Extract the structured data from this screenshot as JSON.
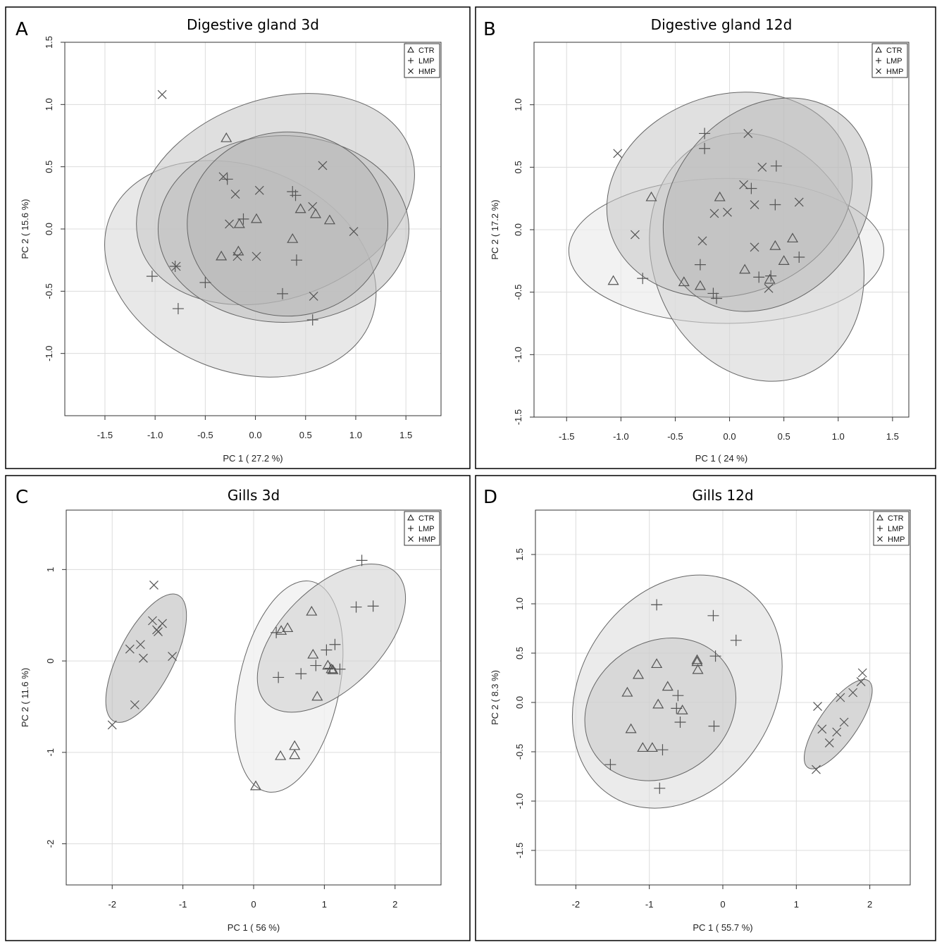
{
  "chart_data": [
    {
      "panel": "A",
      "type": "scatter",
      "title": "Digestive gland 3d",
      "xlabel": "PC 1 ( 27.2 %)",
      "ylabel": "PC 2 ( 15.6 %)",
      "xlim": [
        -1.9,
        1.85
      ],
      "ylim": [
        -1.5,
        1.5
      ],
      "xticks": [
        -1.5,
        -1.0,
        -0.5,
        0.0,
        0.5,
        1.0,
        1.5
      ],
      "xtick_labels": [
        "-1.5",
        "-1.0",
        "-0.5",
        "0.0",
        "0.5",
        "1.0",
        "1.5"
      ],
      "yticks": [
        -1.0,
        -0.5,
        0.0,
        0.5,
        1.0,
        1.5
      ],
      "ytick_labels": [
        "-1.0",
        "-0.5",
        "0.0",
        "0.5",
        "1.0",
        "1.5"
      ],
      "grid": true,
      "legend": {
        "position": "top-right",
        "entries": [
          {
            "label": "CTR",
            "marker": "triangle"
          },
          {
            "label": "LMP",
            "marker": "plus"
          },
          {
            "label": "HMP",
            "marker": "cross"
          }
        ]
      },
      "ellipses": [
        {
          "cx": -0.15,
          "cy": -0.32,
          "rx": 1.4,
          "ry": 0.82,
          "angle": 22,
          "fill": "#d9d9d9",
          "opacity": 0.6
        },
        {
          "cx": 0.2,
          "cy": 0.24,
          "rx": 1.43,
          "ry": 0.8,
          "angle": -20,
          "fill": "#c9c9c9",
          "opacity": 0.6
        },
        {
          "cx": 0.28,
          "cy": 0.0,
          "rx": 1.25,
          "ry": 0.75,
          "angle": 0,
          "fill": "#bdbdbd",
          "opacity": 0.55
        },
        {
          "cx": 0.32,
          "cy": 0.04,
          "rx": 1.0,
          "ry": 0.74,
          "angle": 0,
          "fill": "#b3b3b3",
          "opacity": 0.5
        }
      ],
      "series": [
        {
          "name": "CTR",
          "marker": "triangle",
          "x": [
            -0.29,
            -0.16,
            0.01,
            0.45,
            0.6,
            0.74,
            0.37,
            -0.34,
            -0.17
          ],
          "y": [
            0.73,
            0.04,
            0.08,
            0.16,
            0.12,
            0.07,
            -0.08,
            -0.22,
            -0.18
          ]
        },
        {
          "name": "LMP",
          "marker": "plus",
          "x": [
            -0.28,
            -0.12,
            0.37,
            0.4,
            0.41,
            0.27,
            -1.03,
            -0.8,
            -0.5,
            -0.77,
            0.57
          ],
          "y": [
            0.4,
            0.08,
            0.3,
            0.27,
            -0.25,
            -0.52,
            -0.38,
            -0.3,
            -0.43,
            -0.64,
            -0.73
          ]
        },
        {
          "name": "HMP",
          "marker": "cross",
          "x": [
            -0.93,
            -0.32,
            0.67,
            -0.2,
            0.04,
            0.57,
            0.98,
            -0.26,
            -0.18,
            0.01,
            0.58,
            -0.79
          ],
          "y": [
            1.08,
            0.42,
            0.51,
            0.28,
            0.31,
            0.18,
            -0.02,
            0.04,
            -0.22,
            -0.22,
            -0.54,
            -0.3
          ]
        }
      ]
    },
    {
      "panel": "B",
      "type": "scatter",
      "title": "Digestive gland 12d",
      "xlabel": "PC 1 ( 24 %)",
      "ylabel": "PC 2 ( 17.2 %)",
      "xlim": [
        -1.8,
        1.65
      ],
      "ylim": [
        -1.5,
        1.5
      ],
      "xticks": [
        -1.5,
        -1.0,
        -0.5,
        0.0,
        0.5,
        1.0,
        1.5
      ],
      "xtick_labels": [
        "-1.5",
        "-1.0",
        "-0.5",
        "0.0",
        "0.5",
        "1.0",
        "1.5"
      ],
      "yticks": [
        -1.5,
        -1.0,
        -0.5,
        0.0,
        0.5,
        1.0
      ],
      "ytick_labels": [
        "-1.5",
        "-1.0",
        "-0.5",
        "0.0",
        "0.5",
        "1.0"
      ],
      "grid": true,
      "legend": {
        "position": "top-right",
        "entries": [
          {
            "label": "CTR",
            "marker": "triangle"
          },
          {
            "label": "LMP",
            "marker": "plus"
          },
          {
            "label": "HMP",
            "marker": "cross"
          }
        ]
      },
      "ellipses": [
        {
          "cx": -0.03,
          "cy": -0.17,
          "rx": 1.45,
          "ry": 0.58,
          "angle": 0,
          "fill": "#ececec",
          "opacity": 0.7
        },
        {
          "cx": 0.25,
          "cy": -0.22,
          "rx": 1.17,
          "ry": 0.83,
          "angle": 68,
          "fill": "#d5d5d5",
          "opacity": 0.6
        },
        {
          "cx": 0.0,
          "cy": 0.28,
          "rx": 1.15,
          "ry": 0.8,
          "angle": -18,
          "fill": "#c6c6c6",
          "opacity": 0.55
        },
        {
          "cx": 0.35,
          "cy": 0.2,
          "rx": 1.07,
          "ry": 0.75,
          "angle": -48,
          "fill": "#b5b5b5",
          "opacity": 0.5
        }
      ],
      "series": [
        {
          "name": "CTR",
          "marker": "triangle",
          "x": [
            -0.72,
            -0.09,
            0.58,
            0.42,
            0.14,
            0.5,
            0.37,
            -0.42,
            -0.27,
            -1.07
          ],
          "y": [
            0.26,
            0.26,
            -0.07,
            -0.13,
            -0.32,
            -0.25,
            -0.4,
            -0.42,
            -0.45,
            -0.41
          ]
        },
        {
          "name": "LMP",
          "marker": "plus",
          "x": [
            -0.23,
            -0.23,
            0.43,
            0.2,
            0.42,
            0.64,
            -0.27,
            0.27,
            0.38,
            -0.8,
            -0.15,
            -0.12
          ],
          "y": [
            0.77,
            0.65,
            0.51,
            0.33,
            0.2,
            -0.22,
            -0.28,
            -0.38,
            -0.37,
            -0.39,
            -0.51,
            -0.55
          ]
        },
        {
          "name": "HMP",
          "marker": "cross",
          "x": [
            -1.03,
            0.17,
            0.3,
            0.13,
            0.23,
            -0.14,
            -0.02,
            0.64,
            -0.87,
            -0.25,
            0.23,
            0.36
          ],
          "y": [
            0.61,
            0.77,
            0.5,
            0.36,
            0.2,
            0.13,
            0.14,
            0.22,
            -0.04,
            -0.09,
            -0.14,
            -0.47
          ]
        }
      ]
    },
    {
      "panel": "C",
      "type": "scatter",
      "title": "Gills 3d",
      "xlabel": "PC 1 ( 56 %)",
      "ylabel": "PC 2 ( 11.6 %)",
      "xlim": [
        -2.65,
        2.65
      ],
      "ylim": [
        -2.45,
        1.65
      ],
      "xticks": [
        -2,
        -1,
        0,
        1,
        2
      ],
      "xtick_labels": [
        "-2",
        "-1",
        "0",
        "1",
        "2"
      ],
      "yticks": [
        -2,
        -1,
        0,
        1
      ],
      "ytick_labels": [
        "-2",
        "-1",
        "0",
        "1"
      ],
      "grid": true,
      "legend": {
        "position": "top-right",
        "entries": [
          {
            "label": "CTR",
            "marker": "triangle"
          },
          {
            "label": "LMP",
            "marker": "plus"
          },
          {
            "label": "HMP",
            "marker": "cross"
          }
        ]
      },
      "ellipses": [
        {
          "cx": 0.5,
          "cy": -0.28,
          "rx": 1.52,
          "ry": 0.55,
          "angle": -78,
          "fill": "#f0f0f0",
          "opacity": 0.8
        },
        {
          "cx": 1.1,
          "cy": 0.25,
          "rx": 1.3,
          "ry": 0.55,
          "angle": -45,
          "fill": "#d2d2d2",
          "opacity": 0.6
        },
        {
          "cx": -1.52,
          "cy": 0.03,
          "rx": 1.0,
          "ry": 0.3,
          "angle": -63,
          "fill": "#bcbcbc",
          "opacity": 0.6
        }
      ],
      "series": [
        {
          "name": "CTR",
          "marker": "triangle",
          "x": [
            0.82,
            0.48,
            0.39,
            0.84,
            1.05,
            1.1,
            1.12,
            0.9,
            0.58,
            0.58,
            0.38,
            0.03
          ],
          "y": [
            0.54,
            0.36,
            0.33,
            0.07,
            -0.05,
            -0.09,
            -0.1,
            -0.39,
            -0.93,
            -1.03,
            -1.04,
            -1.37
          ]
        },
        {
          "name": "LMP",
          "marker": "plus",
          "x": [
            1.53,
            1.45,
            1.69,
            0.32,
            1.15,
            1.03,
            0.88,
            0.67,
            1.08,
            1.22,
            0.35
          ],
          "y": [
            1.1,
            0.59,
            0.6,
            0.31,
            0.18,
            0.12,
            -0.05,
            -0.14,
            -0.08,
            -0.09,
            -0.18
          ]
        },
        {
          "name": "HMP",
          "marker": "cross",
          "x": [
            -1.41,
            -1.43,
            -1.29,
            -1.37,
            -1.35,
            -1.6,
            -1.75,
            -1.15,
            -1.56,
            -1.68,
            -2.0
          ],
          "y": [
            0.83,
            0.44,
            0.41,
            0.34,
            0.32,
            0.18,
            0.13,
            0.05,
            0.03,
            -0.48,
            -0.7
          ]
        }
      ]
    },
    {
      "panel": "D",
      "type": "scatter",
      "title": "Gills 12d",
      "xlabel": "PC 1 ( 55.7 %)",
      "ylabel": "PC 2 ( 8.3 %)",
      "xlim": [
        -2.55,
        2.55
      ],
      "ylim": [
        -1.85,
        1.95
      ],
      "xticks": [
        -2,
        -1,
        0,
        1,
        2
      ],
      "xtick_labels": [
        "-2",
        "-1",
        "0",
        "1",
        "2"
      ],
      "yticks": [
        -1.5,
        -1.0,
        -0.5,
        0.0,
        0.5,
        1.0,
        1.5
      ],
      "ytick_labels": [
        "-1.5",
        "-1.0",
        "-0.5",
        "0.0",
        "0.5",
        "1.0",
        "1.5"
      ],
      "grid": true,
      "legend": {
        "position": "top-right",
        "entries": [
          {
            "label": "CTR",
            "marker": "triangle"
          },
          {
            "label": "LMP",
            "marker": "plus"
          },
          {
            "label": "HMP",
            "marker": "cross"
          }
        ]
      },
      "ellipses": [
        {
          "cx": -0.62,
          "cy": 0.11,
          "rx": 1.68,
          "ry": 0.98,
          "angle": -58,
          "fill": "#dedede",
          "opacity": 0.6
        },
        {
          "cx": -0.85,
          "cy": -0.07,
          "rx": 1.08,
          "ry": 0.68,
          "angle": -35,
          "fill": "#c9c9c9",
          "opacity": 0.55
        },
        {
          "cx": 1.57,
          "cy": -0.22,
          "rx": 0.72,
          "ry": 0.19,
          "angle": -55,
          "fill": "#bcbcbc",
          "opacity": 0.6
        }
      ],
      "series": [
        {
          "name": "CTR",
          "marker": "triangle",
          "x": [
            -0.35,
            -0.35,
            -0.34,
            -0.9,
            -1.15,
            -0.75,
            -1.3,
            -0.88,
            -0.55,
            -1.25,
            -1.09,
            -0.96
          ],
          "y": [
            0.43,
            0.41,
            0.33,
            0.39,
            0.28,
            0.16,
            0.1,
            -0.02,
            -0.08,
            -0.27,
            -0.46,
            -0.46
          ]
        },
        {
          "name": "LMP",
          "marker": "plus",
          "x": [
            -0.9,
            -0.13,
            0.18,
            -0.1,
            -0.61,
            -0.63,
            -0.58,
            -0.12,
            -0.82,
            -1.53,
            -0.86
          ],
          "y": [
            0.99,
            0.88,
            0.63,
            0.47,
            0.07,
            -0.06,
            -0.2,
            -0.24,
            -0.48,
            -0.63,
            -0.87
          ]
        },
        {
          "name": "HMP",
          "marker": "cross",
          "x": [
            1.9,
            1.88,
            1.77,
            1.6,
            1.29,
            1.65,
            1.35,
            1.55,
            1.45,
            1.27
          ],
          "y": [
            0.3,
            0.21,
            0.1,
            0.05,
            -0.04,
            -0.2,
            -0.27,
            -0.3,
            -0.41,
            -0.68
          ]
        }
      ]
    }
  ]
}
